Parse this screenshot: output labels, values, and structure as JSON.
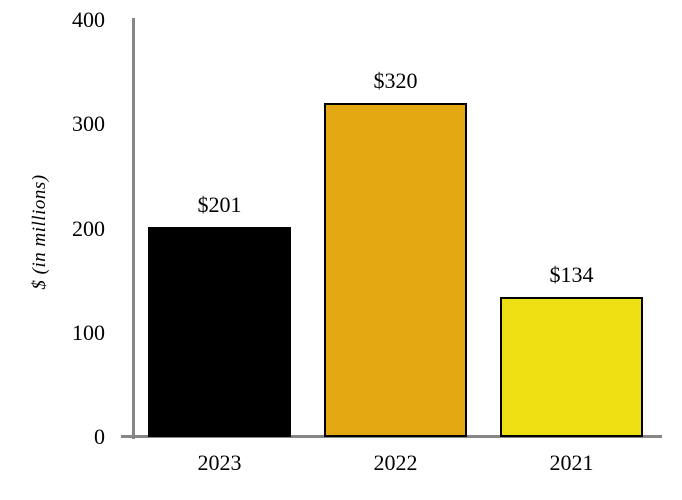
{
  "chart_data": {
    "type": "bar",
    "title": "",
    "xlabel": "",
    "ylabel": "$ (in millions)",
    "categories": [
      "2023",
      "2022",
      "2021"
    ],
    "values": [
      201,
      320,
      134
    ],
    "value_labels": [
      "$201",
      "$320",
      "$134"
    ],
    "series": [
      {
        "name": "2023",
        "values": [
          201
        ],
        "color": "#000000"
      },
      {
        "name": "2022",
        "values": [
          320
        ],
        "color": "#e2a711"
      },
      {
        "name": "2021",
        "values": [
          134
        ],
        "color": "#eddf12"
      }
    ],
    "bar_colors": [
      "#000000",
      "#e2a711",
      "#eddf12"
    ],
    "bar_border_color": "#000000",
    "axis_line_color": "#868686",
    "text_color": "#000000",
    "ylim": [
      0,
      400
    ],
    "yticks": [
      "0",
      "100",
      "200",
      "300",
      "400"
    ],
    "grid": false,
    "legend": false,
    "background": "#ffffff"
  }
}
